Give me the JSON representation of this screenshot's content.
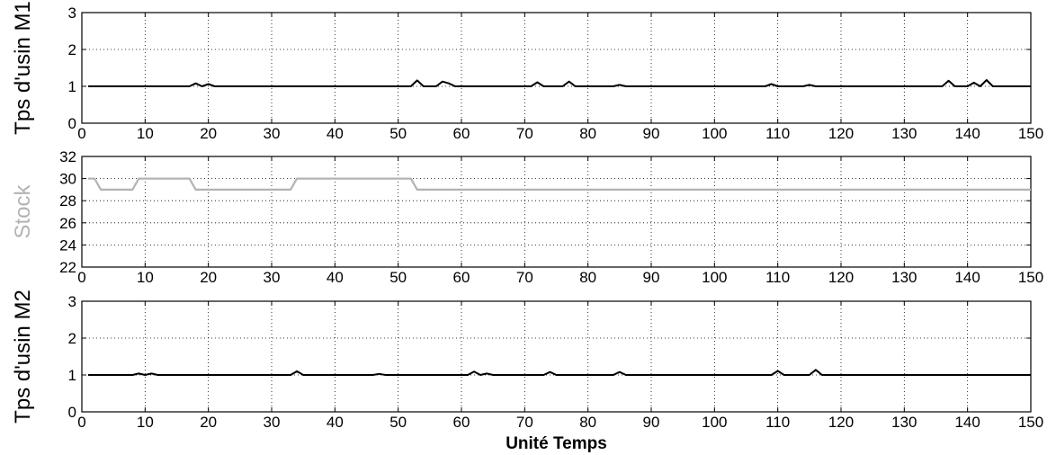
{
  "chart_data": [
    {
      "type": "line",
      "ylabel": "Tps d'usin M1",
      "xlabel": "",
      "xlim": [
        0,
        150
      ],
      "ylim": [
        0,
        3
      ],
      "xticks": [
        0,
        10,
        20,
        30,
        40,
        50,
        60,
        70,
        80,
        90,
        100,
        110,
        120,
        130,
        140,
        150
      ],
      "yticks": [
        0,
        1,
        2,
        3
      ],
      "grid": true,
      "color": "#000000",
      "series": [
        {
          "x": [
            1,
            3,
            4,
            17,
            18,
            19,
            20,
            21,
            52,
            53,
            54,
            56,
            57,
            58,
            59,
            60,
            71,
            72,
            73,
            76,
            77,
            78,
            84,
            85,
            86,
            108,
            109,
            110,
            114,
            115,
            116,
            136,
            137,
            138,
            140,
            141,
            142,
            143,
            144,
            150
          ],
          "y": [
            1,
            1,
            1,
            1,
            1.08,
            1,
            1.06,
            1,
            1,
            1.16,
            1,
            1,
            1.13,
            1.08,
            1,
            1,
            1,
            1.11,
            1,
            1,
            1.13,
            1,
            1,
            1.04,
            1,
            1,
            1.06,
            1,
            1,
            1.04,
            1,
            1,
            1.15,
            1,
            1,
            1.1,
            1,
            1.17,
            1,
            1
          ]
        }
      ]
    },
    {
      "type": "line",
      "ylabel": "Stock",
      "xlabel": "",
      "xlim": [
        0,
        150
      ],
      "ylim": [
        22,
        32
      ],
      "xticks": [
        0,
        10,
        20,
        30,
        40,
        50,
        60,
        70,
        80,
        90,
        100,
        110,
        120,
        130,
        140,
        150
      ],
      "yticks": [
        22,
        24,
        26,
        28,
        30,
        32
      ],
      "grid": true,
      "color": "#b3b3b3",
      "series": [
        {
          "x": [
            1,
            2,
            3,
            8,
            9,
            17,
            18,
            33,
            34,
            52,
            53,
            150
          ],
          "y": [
            30,
            30,
            29,
            29,
            30,
            30,
            29,
            29,
            30,
            30,
            29,
            29
          ]
        }
      ]
    },
    {
      "type": "line",
      "ylabel": "Tps d'usin M2",
      "xlabel": "Unité Temps",
      "xlim": [
        0,
        150
      ],
      "ylim": [
        0,
        3
      ],
      "xticks": [
        0,
        10,
        20,
        30,
        40,
        50,
        60,
        70,
        80,
        90,
        100,
        110,
        120,
        130,
        140,
        150
      ],
      "yticks": [
        0,
        1,
        2,
        3
      ],
      "grid": true,
      "color": "#000000",
      "series": [
        {
          "x": [
            1,
            8,
            9,
            10,
            11,
            12,
            33,
            34,
            35,
            46,
            47,
            48,
            61,
            62,
            63,
            64,
            65,
            73,
            74,
            75,
            84,
            85,
            86,
            109,
            110,
            111,
            115,
            116,
            117,
            150
          ],
          "y": [
            1,
            1,
            1.04,
            1,
            1.04,
            1,
            1,
            1.1,
            1,
            1,
            1.03,
            1,
            1,
            1.09,
            1,
            1.04,
            1,
            1,
            1.08,
            1,
            1,
            1.08,
            1,
            1,
            1.11,
            1,
            1,
            1.14,
            1,
            1
          ]
        }
      ]
    }
  ]
}
